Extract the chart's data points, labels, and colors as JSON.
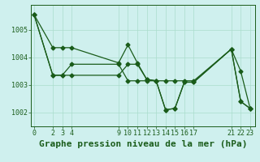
{
  "title": "Graphe pression niveau de la mer (hPa)",
  "background_color": "#cff0ee",
  "grid_color": "#aaddcc",
  "line_color": "#1a5c1a",
  "series": [
    {
      "x": [
        0,
        2,
        3,
        4,
        9,
        10,
        11,
        12,
        13,
        14,
        15,
        16,
        17,
        21,
        22,
        23
      ],
      "y": [
        1005.55,
        1003.35,
        1003.35,
        1003.75,
        1003.75,
        1003.15,
        1003.15,
        1003.15,
        1003.15,
        1002.1,
        1002.15,
        1003.1,
        1003.1,
        1004.3,
        1002.4,
        1002.15
      ]
    },
    {
      "x": [
        0,
        2,
        3,
        4,
        9,
        10,
        11,
        12,
        13,
        14,
        15,
        16,
        17,
        21,
        22,
        23
      ],
      "y": [
        1005.55,
        1004.35,
        1004.35,
        1004.35,
        1003.8,
        1004.45,
        1003.8,
        1003.2,
        1003.15,
        1003.15,
        1003.15,
        1003.15,
        1003.15,
        1004.3,
        1003.5,
        1002.15
      ]
    },
    {
      "x": [
        0,
        2,
        3,
        4,
        9,
        10,
        11,
        12,
        13,
        14,
        15,
        16,
        17,
        21,
        22,
        23
      ],
      "y": [
        1005.55,
        1003.35,
        1003.35,
        1003.35,
        1003.35,
        1003.75,
        1003.75,
        1003.2,
        1003.15,
        1002.1,
        1002.15,
        1003.1,
        1003.1,
        1004.3,
        1002.4,
        1002.15
      ]
    }
  ],
  "xticks": [
    0,
    2,
    3,
    4,
    9,
    10,
    11,
    12,
    13,
    14,
    15,
    16,
    17,
    21,
    22,
    23
  ],
  "yticks": [
    1002,
    1003,
    1004,
    1005
  ],
  "xlim": [
    -0.3,
    23.5
  ],
  "ylim": [
    1001.5,
    1005.9
  ],
  "title_fontsize": 8,
  "tick_fontsize": 6,
  "title_color": "#1a5c1a",
  "tick_color": "#1a5c1a",
  "marker": "D",
  "markersize": 2.5,
  "linewidth": 0.9
}
